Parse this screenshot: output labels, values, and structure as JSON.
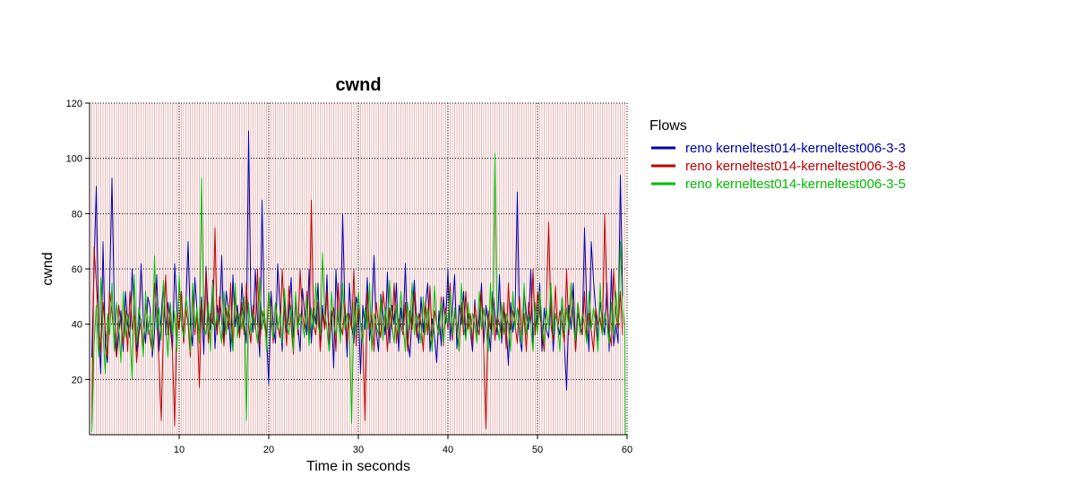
{
  "chart_data": {
    "type": "line",
    "title": "cwnd",
    "xlabel": "Time in seconds",
    "ylabel": "cwnd",
    "xlim": [
      0,
      60
    ],
    "ylim": [
      0,
      120
    ],
    "x_ticks": [
      10,
      20,
      30,
      40,
      50,
      60
    ],
    "y_ticks": [
      20,
      40,
      60,
      80,
      100,
      120
    ],
    "grid": "dotted major grid; dense vertical light-red lines in background",
    "legend": {
      "title": "Flows",
      "placement": "right"
    },
    "sample_interval": 0.25,
    "series": [
      {
        "name": "reno kerneltest014-kerneltest006-3-3",
        "color": "#0000aa",
        "values": [
          28,
          60,
          90,
          38,
          22,
          70,
          32,
          26,
          55,
          93,
          48,
          28,
          36,
          45,
          30,
          52,
          40,
          35,
          60,
          44,
          30,
          38,
          62,
          41,
          33,
          50,
          46,
          28,
          37,
          58,
          30,
          43,
          55,
          36,
          48,
          40,
          30,
          62,
          45,
          38,
          52,
          33,
          47,
          70,
          40,
          32,
          57,
          44,
          36,
          50,
          29,
          61,
          42,
          38,
          56,
          31,
          47,
          40,
          65,
          34,
          52,
          45,
          30,
          58,
          39,
          47,
          36,
          55,
          42,
          33,
          110,
          48,
          37,
          60,
          41,
          28,
          85,
          44,
          36,
          18,
          52,
          40,
          33,
          62,
          46,
          30,
          50,
          37,
          44,
          57,
          35,
          48,
          40,
          30,
          53,
          44,
          36,
          60,
          33,
          46,
          40,
          55,
          31,
          47,
          38,
          58,
          30,
          45,
          24,
          60,
          42,
          36,
          80,
          45,
          28,
          55,
          40,
          33,
          50,
          46,
          22,
          47,
          38,
          57,
          34,
          43,
          65,
          38,
          30,
          51,
          44,
          36,
          59,
          33,
          47,
          40,
          55,
          30,
          46,
          38,
          62,
          35,
          28,
          44,
          56,
          40,
          33,
          50,
          37,
          47,
          55,
          30,
          42,
          36,
          26,
          45,
          32,
          50,
          40,
          60,
          34,
          45,
          58,
          31,
          47,
          40,
          52,
          35,
          44,
          38,
          30,
          49,
          36,
          42,
          55,
          33,
          47,
          40,
          30,
          52,
          44,
          36,
          58,
          33,
          46,
          40,
          25,
          48,
          37,
          44,
          88,
          36,
          30,
          52,
          44,
          38,
          60,
          33,
          47,
          40,
          55,
          30,
          46,
          38,
          35,
          52,
          30,
          44,
          40,
          36,
          50,
          33,
          16,
          47,
          38,
          55,
          30,
          44,
          40,
          36,
          75,
          45,
          30,
          70,
          56,
          45,
          34,
          48,
          42,
          36,
          55,
          30,
          60,
          32,
          40,
          33,
          94,
          50
        ]
      },
      {
        "name": "reno kerneltest014-kerneltest006-3-8",
        "color": "#bb0000",
        "values": [
          4,
          68,
          55,
          42,
          30,
          48,
          38,
          28,
          52,
          44,
          36,
          28,
          47,
          40,
          33,
          45,
          30,
          52,
          38,
          44,
          26,
          36,
          42,
          31,
          48,
          40,
          35,
          30,
          55,
          44,
          26,
          5,
          40,
          58,
          36,
          48,
          30,
          3,
          44,
          38,
          52,
          33,
          46,
          40,
          28,
          53,
          36,
          44,
          17,
          48,
          38,
          60,
          33,
          44,
          40,
          75,
          36,
          50,
          42,
          32,
          46,
          38,
          55,
          30,
          50,
          42,
          35,
          48,
          36,
          55,
          40,
          33,
          47,
          38,
          60,
          32,
          45,
          40,
          36,
          52,
          44,
          33,
          48,
          40,
          35,
          60,
          44,
          32,
          54,
          40,
          29,
          50,
          36,
          60,
          44,
          38,
          52,
          33,
          85,
          40,
          36,
          48,
          30,
          44,
          38,
          52,
          34,
          42,
          46,
          30,
          55,
          40,
          36,
          48,
          33,
          44,
          38,
          60,
          32,
          46,
          40,
          35,
          5,
          52,
          38,
          44,
          30,
          48,
          40,
          35,
          52,
          44,
          30,
          46,
          38,
          55,
          33,
          42,
          40,
          36,
          48,
          30,
          45,
          38,
          52,
          35,
          44,
          40,
          30,
          48,
          36,
          54,
          33,
          45,
          40,
          36,
          50,
          32,
          46,
          38,
          55,
          34,
          44,
          40,
          30,
          48,
          36,
          52,
          38,
          44,
          33,
          47,
          40,
          36,
          52,
          30,
          2,
          45,
          38,
          50,
          34,
          43,
          40,
          36,
          48,
          31,
          55,
          38,
          45,
          40,
          33,
          50,
          36,
          44,
          30,
          48,
          40,
          60,
          36,
          52,
          44,
          38,
          30,
          48,
          77,
          40,
          34,
          54,
          38,
          45,
          40,
          33,
          60,
          36,
          55,
          44,
          30,
          48,
          40,
          36,
          52,
          34,
          44,
          38,
          30,
          46,
          40,
          42,
          36,
          80,
          48,
          38,
          32,
          60,
          44,
          38,
          52,
          36
        ]
      },
      {
        "name": "reno kerneltest014-kerneltest006-3-5",
        "color": "#00bb00",
        "values": [
          1,
          32,
          47,
          28,
          57,
          38,
          22,
          44,
          36,
          55,
          30,
          48,
          40,
          26,
          52,
          35,
          44,
          38,
          20,
          58,
          33,
          46,
          40,
          28,
          52,
          36,
          44,
          30,
          65,
          38,
          46,
          34,
          56,
          40,
          28,
          48,
          36,
          45,
          30,
          58,
          40,
          35,
          50,
          44,
          30,
          55,
          38,
          46,
          33,
          93,
          40,
          36,
          48,
          30,
          55,
          38,
          44,
          40,
          33,
          52,
          36,
          47,
          40,
          30,
          55,
          35,
          44,
          38,
          50,
          5,
          48,
          36,
          44,
          40,
          33,
          57,
          38,
          46,
          30,
          52,
          40,
          35,
          48,
          38,
          44,
          33,
          53,
          40,
          36,
          47,
          30,
          52,
          38,
          44,
          40,
          35,
          50,
          32,
          46,
          38,
          55,
          40,
          36,
          66,
          44,
          38,
          30,
          52,
          40,
          36,
          46,
          33,
          55,
          38,
          44,
          40,
          4,
          48,
          36,
          52,
          40,
          33,
          46,
          38,
          55,
          30,
          44,
          40,
          36,
          50,
          34,
          46,
          38,
          56,
          40,
          33,
          47,
          36,
          52,
          40,
          30,
          48,
          38,
          55,
          36,
          44,
          40,
          33,
          50,
          36,
          46,
          38,
          30,
          54,
          40,
          36,
          48,
          33,
          44,
          40,
          52,
          36,
          46,
          38,
          30,
          55,
          40,
          34,
          48,
          36,
          44,
          40,
          33,
          52,
          38,
          46,
          40,
          30,
          55,
          36,
          102,
          40,
          34,
          48,
          36,
          44,
          40,
          30,
          52,
          38,
          46,
          40,
          33,
          55,
          36,
          44,
          40,
          30,
          48,
          36,
          52,
          40,
          33,
          46,
          38,
          55,
          36,
          44,
          40,
          30,
          50,
          36,
          46,
          38,
          55,
          40,
          34,
          48,
          36,
          44,
          40,
          33,
          52,
          38,
          46,
          40,
          30,
          55,
          36,
          44,
          40,
          33,
          48,
          36,
          52,
          40,
          70,
          46,
          38,
          0
        ]
      }
    ]
  }
}
